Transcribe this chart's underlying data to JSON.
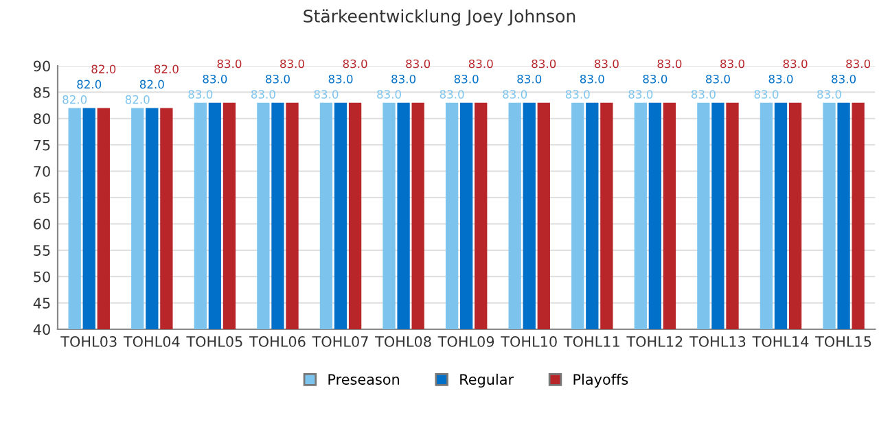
{
  "chart_data": {
    "type": "bar",
    "title": "Stärkeentwicklung Joey Johnson",
    "categories": [
      "TOHL03",
      "TOHL04",
      "TOHL05",
      "TOHL06",
      "TOHL07",
      "TOHL08",
      "TOHL09",
      "TOHL10",
      "TOHL11",
      "TOHL12",
      "TOHL13",
      "TOHL14",
      "TOHL15"
    ],
    "series": [
      {
        "name": "Preseason",
        "color": "#7cc4ee",
        "values": [
          82,
          82,
          83,
          83,
          83,
          83,
          83,
          83,
          83,
          83,
          83,
          83,
          83
        ],
        "value_labels": [
          "82.0",
          "82.0",
          "83.0",
          "83.0",
          "83.0",
          "83.0",
          "83.0",
          "83.0",
          "83.0",
          "83.0",
          "83.0",
          "83.0",
          "83.0"
        ]
      },
      {
        "name": "Regular",
        "color": "#0070c8",
        "values": [
          82,
          82,
          83,
          83,
          83,
          83,
          83,
          83,
          83,
          83,
          83,
          83,
          83
        ],
        "value_labels": [
          "82.0",
          "82.0",
          "83.0",
          "83.0",
          "83.0",
          "83.0",
          "83.0",
          "83.0",
          "83.0",
          "83.0",
          "83.0",
          "83.0",
          "83.0"
        ]
      },
      {
        "name": "Playoffs",
        "color": "#b8262a",
        "values": [
          82,
          82,
          83,
          83,
          83,
          83,
          83,
          83,
          83,
          83,
          83,
          83,
          83
        ],
        "value_labels": [
          "82.0",
          "82.0",
          "83.0",
          "83.0",
          "83.0",
          "83.0",
          "83.0",
          "83.0",
          "83.0",
          "83.0",
          "83.0",
          "83.0",
          "83.0"
        ]
      }
    ],
    "ylim": [
      40,
      90
    ],
    "yticks": [
      40,
      45,
      50,
      55,
      60,
      65,
      70,
      75,
      80,
      85,
      90
    ],
    "grid": "y",
    "legend": "bottom"
  }
}
